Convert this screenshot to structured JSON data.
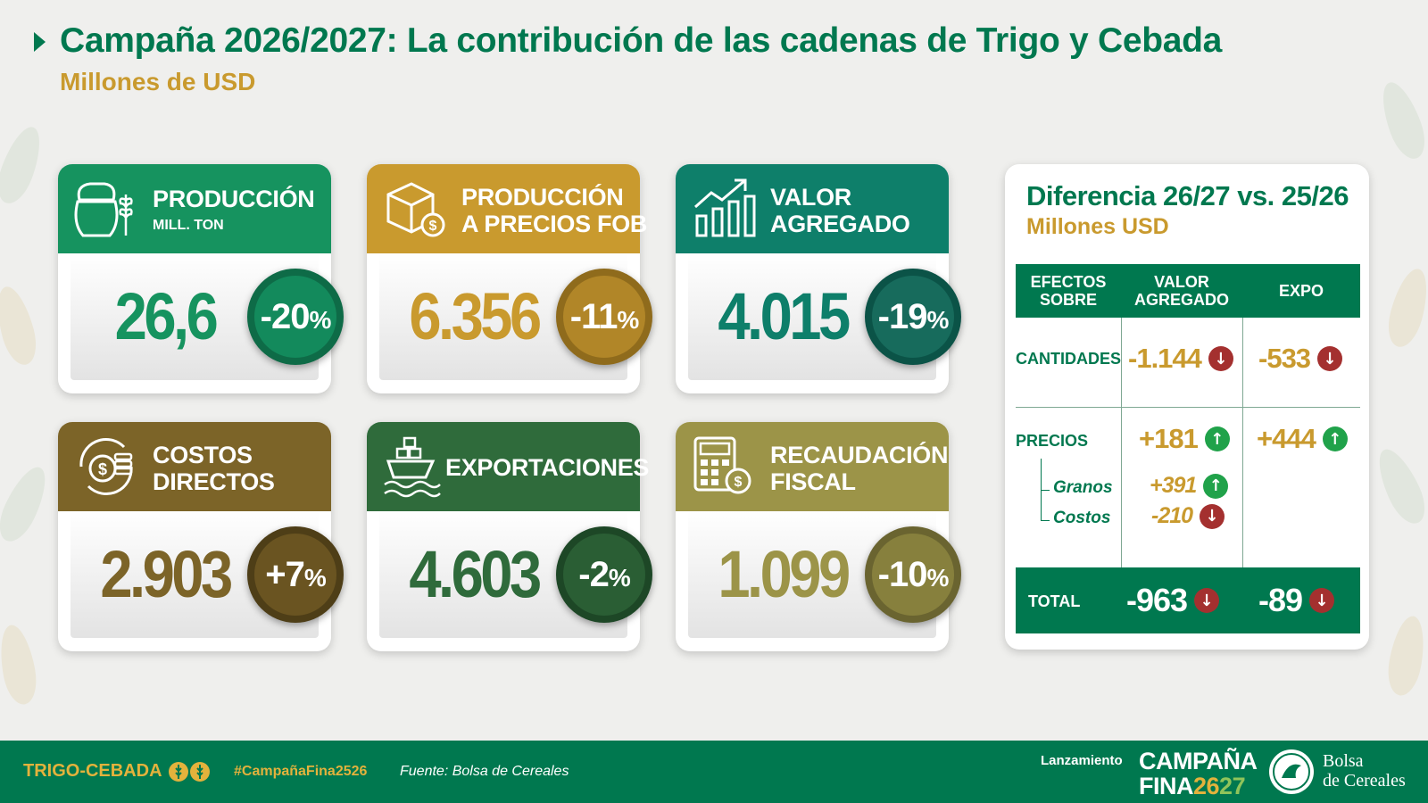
{
  "header": {
    "title": "Campaña 2026/2027: La contribución de las cadenas de Trigo y Cebada",
    "subtitle": "Millones de USD"
  },
  "cards": [
    {
      "label_line1": "PRODUCCIÓN",
      "label_line2": "",
      "unit": "MILL. TON",
      "value": "26,6",
      "change": "-20",
      "pct": "%",
      "head_color": "#16935f",
      "value_color": "#16935f",
      "icon": "wheat-sack-icon"
    },
    {
      "label_line1": "PRODUCCIÓN",
      "label_line2": "A PRECIOS FOB",
      "unit": "",
      "value": "6.356",
      "change": "-11",
      "pct": "%",
      "head_color": "#c99a2e",
      "value_color": "#c99a2e",
      "icon": "box-dollar-icon"
    },
    {
      "label_line1": "VALOR",
      "label_line2": "AGREGADO",
      "unit": "",
      "value": "4.015",
      "change": "-19",
      "pct": "%",
      "head_color": "#0e7f6a",
      "value_color": "#0e7f6a",
      "icon": "growth-chart-icon"
    },
    {
      "label_line1": "COSTOS",
      "label_line2": "DIRECTOS",
      "unit": "",
      "value": "2.903",
      "change": "+7",
      "pct": "%",
      "head_color": "#7c6428",
      "value_color": "#7c6428",
      "icon": "coins-cycle-icon"
    },
    {
      "label_line1": "EXPORTACIONES",
      "label_line2": "",
      "unit": "",
      "value": "4.603",
      "change": "-2",
      "pct": "%",
      "head_color": "#2f6b3b",
      "value_color": "#2f6b3b",
      "icon": "ship-icon"
    },
    {
      "label_line1": "RECAUDACIÓN",
      "label_line2": "FISCAL",
      "unit": "",
      "value": "1.099",
      "change": "-10",
      "pct": "%",
      "head_color": "#9c9448",
      "value_color": "#9c9448",
      "icon": "calculator-icon"
    }
  ],
  "panel": {
    "title": "Diferencia 26/27 vs. 25/26",
    "subtitle": "Millones USD",
    "col1_l1": "EFECTOS",
    "col1_l2": "SOBRE",
    "col2_l1": "VALOR",
    "col2_l2": "AGREGADO",
    "col3": "EXPO",
    "row_cantidades": "CANTIDADES",
    "cant_va": "-1.144",
    "cant_expo": "-533",
    "row_precios": "PRECIOS",
    "prec_va": "+181",
    "prec_expo": "+444",
    "sub_granos": "Granos",
    "granos_va": "+391",
    "sub_costos": "Costos",
    "costos_va": "-210",
    "row_total": "TOTAL",
    "total_va": "-963",
    "total_expo": "-89",
    "down_symbol": "↓",
    "up_symbol": "↑"
  },
  "footer": {
    "brand": "TRIGO-CEBADA",
    "hashtag": "#CampañaFina2526",
    "source": "Fuente: Bolsa de Cereales",
    "launch": "Lanzamiento",
    "campaign_l1": "CAMPAÑA",
    "campaign_l2a": "FINA",
    "campaign_l2b": "26",
    "campaign_l2c": "27",
    "org_l1": "Bolsa",
    "org_l2": "de Cereales"
  },
  "colors": {
    "brand_green": "#00784f",
    "gold": "#c99a2e",
    "down": "#a4302f",
    "up": "#20a24a"
  }
}
